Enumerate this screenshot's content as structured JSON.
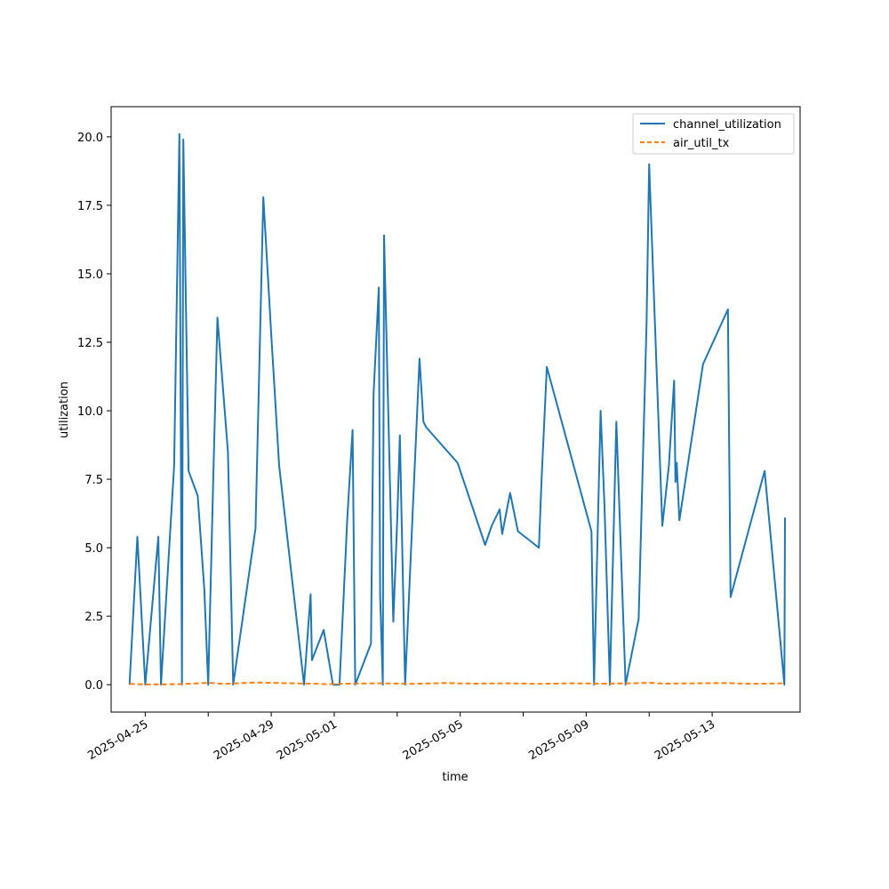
{
  "chart_data": {
    "type": "line",
    "xlabel": "time",
    "ylabel": "utilization",
    "xlim": [
      "2025-04-23T22:00",
      "2025-05-15T19:00"
    ],
    "ylim": [
      -1.0,
      21.1
    ],
    "x_ticks": [
      "2025-04-25",
      "2025-04-27",
      "2025-04-29",
      "2025-05-01",
      "2025-05-03",
      "2025-05-05",
      "2025-05-07",
      "2025-05-09",
      "2025-05-11",
      "2025-05-13"
    ],
    "x_tick_labels": [
      "2025-04-25",
      "",
      "2025-04-29",
      "2025-05-01",
      "",
      "2025-05-05",
      "",
      "2025-05-09",
      "",
      "2025-05-13"
    ],
    "y_ticks": [
      0.0,
      2.5,
      5.0,
      7.5,
      10.0,
      12.5,
      15.0,
      17.5,
      20.0
    ],
    "y_tick_labels": [
      "0.0",
      "2.5",
      "5.0",
      "7.5",
      "10.0",
      "12.5",
      "15.0",
      "17.5",
      "20.0"
    ],
    "grid": false,
    "legend_position": "top-right",
    "series": [
      {
        "name": "channel_utilization",
        "color": "#1f77b4",
        "style": "solid",
        "points": [
          [
            "2025-04-24T12:00",
            0.0
          ],
          [
            "2025-04-24T18:00",
            5.4
          ],
          [
            "2025-04-25T00:00",
            0.0
          ],
          [
            "2025-04-25T10:00",
            5.4
          ],
          [
            "2025-04-25T12:00",
            0.0
          ],
          [
            "2025-04-25T22:00",
            8.0
          ],
          [
            "2025-04-26T02:00",
            20.1
          ],
          [
            "2025-04-26T04:00",
            0.0
          ],
          [
            "2025-04-26T05:00",
            19.9
          ],
          [
            "2025-04-26T09:00",
            7.8
          ],
          [
            "2025-04-26T16:00",
            6.9
          ],
          [
            "2025-04-26T21:00",
            3.5
          ],
          [
            "2025-04-27T00:00",
            0.0
          ],
          [
            "2025-04-27T04:00",
            7.8
          ],
          [
            "2025-04-27T07:00",
            13.4
          ],
          [
            "2025-04-27T15:00",
            8.5
          ],
          [
            "2025-04-27T19:00",
            0.0
          ],
          [
            "2025-04-28T12:00",
            5.7
          ],
          [
            "2025-04-28T18:00",
            17.8
          ],
          [
            "2025-04-29T00:00",
            12.8
          ],
          [
            "2025-04-29T06:00",
            8.0
          ],
          [
            "2025-04-30T01:00",
            0.0
          ],
          [
            "2025-04-30T06:00",
            3.3
          ],
          [
            "2025-04-30T07:00",
            0.9
          ],
          [
            "2025-04-30T16:00",
            2.0
          ],
          [
            "2025-04-30T23:00",
            0.0
          ],
          [
            "2025-05-01T04:00",
            0.0
          ],
          [
            "2025-05-01T10:00",
            6.1
          ],
          [
            "2025-05-01T14:00",
            9.3
          ],
          [
            "2025-05-01T16:00",
            0.0
          ],
          [
            "2025-05-02T04:00",
            1.5
          ],
          [
            "2025-05-02T06:00",
            10.6
          ],
          [
            "2025-05-02T10:00",
            14.5
          ],
          [
            "2025-05-02T11:00",
            3.3
          ],
          [
            "2025-05-02T13:00",
            0.0
          ],
          [
            "2025-05-02T14:00",
            16.4
          ],
          [
            "2025-05-02T21:00",
            2.3
          ],
          [
            "2025-05-03T00:00",
            6.0
          ],
          [
            "2025-05-03T02:00",
            9.1
          ],
          [
            "2025-05-03T06:00",
            0.0
          ],
          [
            "2025-05-03T12:00",
            6.5
          ],
          [
            "2025-05-03T17:00",
            11.9
          ],
          [
            "2025-05-03T20:00",
            9.6
          ],
          [
            "2025-05-03T22:00",
            9.4
          ],
          [
            "2025-05-04T22:00",
            8.1
          ],
          [
            "2025-05-05T19:00",
            5.1
          ],
          [
            "2025-05-06T00:00",
            5.8
          ],
          [
            "2025-05-06T06:00",
            6.4
          ],
          [
            "2025-05-06T08:00",
            5.5
          ],
          [
            "2025-05-06T14:00",
            7.0
          ],
          [
            "2025-05-06T20:00",
            5.6
          ],
          [
            "2025-05-07T12:00",
            5.0
          ],
          [
            "2025-05-07T14:00",
            7.5
          ],
          [
            "2025-05-07T18:00",
            11.6
          ],
          [
            "2025-05-09T04:00",
            5.6
          ],
          [
            "2025-05-09T06:00",
            0.0
          ],
          [
            "2025-05-09T11:00",
            10.0
          ],
          [
            "2025-05-09T14:00",
            6.5
          ],
          [
            "2025-05-09T18:00",
            0.0
          ],
          [
            "2025-05-09T23:00",
            9.6
          ],
          [
            "2025-05-10T06:00",
            0.0
          ],
          [
            "2025-05-10T16:00",
            2.4
          ],
          [
            "2025-05-10T22:00",
            13.2
          ],
          [
            "2025-05-11T00:00",
            19.0
          ],
          [
            "2025-05-11T10:00",
            5.8
          ],
          [
            "2025-05-11T15:00",
            8.0
          ],
          [
            "2025-05-11T19:00",
            11.1
          ],
          [
            "2025-05-11T20:00",
            7.4
          ],
          [
            "2025-05-11T21:00",
            8.1
          ],
          [
            "2025-05-11T23:00",
            6.0
          ],
          [
            "2025-05-12T17:00",
            11.7
          ],
          [
            "2025-05-13T12:00",
            13.7
          ],
          [
            "2025-05-13T14:00",
            3.2
          ],
          [
            "2025-05-14T16:00",
            7.8
          ],
          [
            "2025-05-15T07:00",
            0.0
          ],
          [
            "2025-05-15T07:30",
            6.1
          ]
        ]
      },
      {
        "name": "air_util_tx",
        "color": "#ff7f0e",
        "style": "dashed",
        "points": [
          [
            "2025-04-24T12:00",
            0.03
          ],
          [
            "2025-04-25T00:00",
            0.01
          ],
          [
            "2025-04-26T00:00",
            0.02
          ],
          [
            "2025-04-26T12:00",
            0.04
          ],
          [
            "2025-04-27T00:00",
            0.07
          ],
          [
            "2025-04-27T12:00",
            0.03
          ],
          [
            "2025-04-28T12:00",
            0.08
          ],
          [
            "2025-04-29T06:00",
            0.06
          ],
          [
            "2025-04-30T06:00",
            0.04
          ],
          [
            "2025-04-30T18:00",
            0.02
          ],
          [
            "2025-05-01T12:00",
            0.04
          ],
          [
            "2025-05-02T12:00",
            0.05
          ],
          [
            "2025-05-03T12:00",
            0.03
          ],
          [
            "2025-05-04T12:00",
            0.06
          ],
          [
            "2025-05-05T12:00",
            0.04
          ],
          [
            "2025-05-06T12:00",
            0.05
          ],
          [
            "2025-05-07T12:00",
            0.03
          ],
          [
            "2025-05-08T12:00",
            0.05
          ],
          [
            "2025-05-09T12:00",
            0.04
          ],
          [
            "2025-05-10T12:00",
            0.05
          ],
          [
            "2025-05-11T00:00",
            0.07
          ],
          [
            "2025-05-11T12:00",
            0.04
          ],
          [
            "2025-05-12T12:00",
            0.05
          ],
          [
            "2025-05-13T12:00",
            0.06
          ],
          [
            "2025-05-14T06:00",
            0.03
          ],
          [
            "2025-05-15T07:30",
            0.05
          ]
        ]
      }
    ]
  }
}
